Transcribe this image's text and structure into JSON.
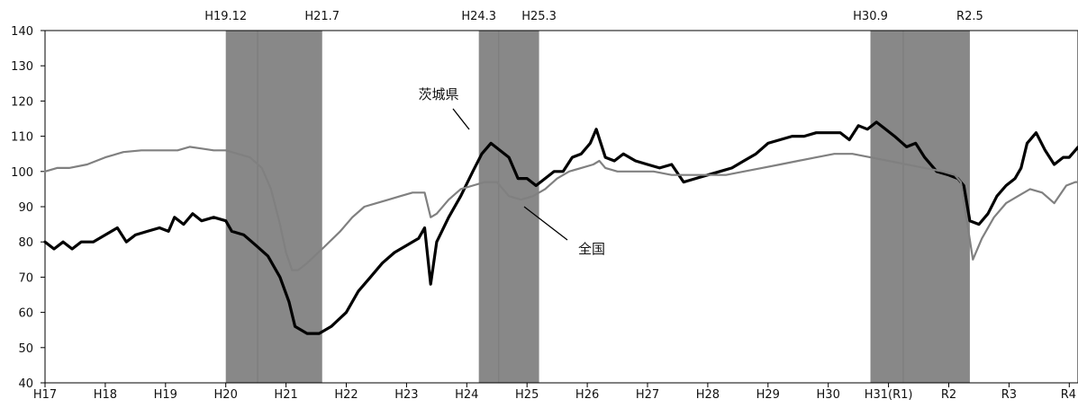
{
  "chart_data": {
    "type": "line",
    "x_unit": "fiscal year (Japanese era)",
    "xlim": [
      "H17",
      "R4+"
    ],
    "ylim": [
      40,
      140
    ],
    "y_ticks": [
      40,
      50,
      60,
      70,
      80,
      90,
      100,
      110,
      120,
      130,
      140
    ],
    "x_tick_labels": [
      "H17",
      "H18",
      "H19",
      "H20",
      "H21",
      "H22",
      "H23",
      "H24",
      "H25",
      "H26",
      "H27",
      "H28",
      "H29",
      "H30",
      "H31(R1)",
      "R2",
      "R3",
      "R4"
    ],
    "grid": false,
    "recession_bands": [
      {
        "start": 3.0,
        "end": 4.6,
        "peak_label": "H19.12",
        "trough_label": "H21.7"
      },
      {
        "start": 7.2,
        "end": 8.2,
        "peak_label": "H24.3",
        "trough_label": "H25.3"
      },
      {
        "start": 13.7,
        "end": 15.35,
        "peak_label": "H30.9",
        "trough_label": "R2.5"
      }
    ],
    "annotations": [
      {
        "text": "茨城県",
        "target_series": "茨城県"
      },
      {
        "text": "全国",
        "target_series": "全国"
      }
    ],
    "series": [
      {
        "name": "茨城県",
        "color": "#000000",
        "points": [
          [
            0.0,
            80
          ],
          [
            0.15,
            78
          ],
          [
            0.3,
            80
          ],
          [
            0.45,
            78
          ],
          [
            0.6,
            80
          ],
          [
            0.8,
            80
          ],
          [
            1.0,
            82
          ],
          [
            1.2,
            84
          ],
          [
            1.35,
            80
          ],
          [
            1.5,
            82
          ],
          [
            1.7,
            83
          ],
          [
            1.9,
            84
          ],
          [
            2.05,
            83
          ],
          [
            2.15,
            87
          ],
          [
            2.3,
            85
          ],
          [
            2.45,
            88
          ],
          [
            2.6,
            86
          ],
          [
            2.8,
            87
          ],
          [
            3.0,
            86
          ],
          [
            3.1,
            83
          ],
          [
            3.3,
            82
          ],
          [
            3.5,
            79
          ],
          [
            3.7,
            76
          ],
          [
            3.9,
            70
          ],
          [
            4.05,
            63
          ],
          [
            4.15,
            56
          ],
          [
            4.35,
            54
          ],
          [
            4.55,
            54
          ],
          [
            4.75,
            56
          ],
          [
            5.0,
            60
          ],
          [
            5.2,
            66
          ],
          [
            5.4,
            70
          ],
          [
            5.6,
            74
          ],
          [
            5.8,
            77
          ],
          [
            6.0,
            79
          ],
          [
            6.2,
            81
          ],
          [
            6.3,
            84
          ],
          [
            6.4,
            68
          ],
          [
            6.5,
            80
          ],
          [
            6.7,
            87
          ],
          [
            6.9,
            93
          ],
          [
            7.1,
            100
          ],
          [
            7.25,
            105
          ],
          [
            7.4,
            108
          ],
          [
            7.55,
            106
          ],
          [
            7.7,
            104
          ],
          [
            7.85,
            98
          ],
          [
            8.0,
            98
          ],
          [
            8.15,
            96
          ],
          [
            8.3,
            98
          ],
          [
            8.45,
            100
          ],
          [
            8.6,
            100
          ],
          [
            8.75,
            104
          ],
          [
            8.9,
            105
          ],
          [
            9.05,
            108
          ],
          [
            9.15,
            112
          ],
          [
            9.3,
            104
          ],
          [
            9.45,
            103
          ],
          [
            9.6,
            105
          ],
          [
            9.8,
            103
          ],
          [
            10.0,
            102
          ],
          [
            10.2,
            101
          ],
          [
            10.4,
            102
          ],
          [
            10.6,
            97
          ],
          [
            10.8,
            98
          ],
          [
            11.0,
            99
          ],
          [
            11.2,
            100
          ],
          [
            11.4,
            101
          ],
          [
            11.6,
            103
          ],
          [
            11.8,
            105
          ],
          [
            12.0,
            108
          ],
          [
            12.2,
            109
          ],
          [
            12.4,
            110
          ],
          [
            12.6,
            110
          ],
          [
            12.8,
            111
          ],
          [
            13.0,
            111
          ],
          [
            13.2,
            111
          ],
          [
            13.35,
            109
          ],
          [
            13.5,
            113
          ],
          [
            13.65,
            112
          ],
          [
            13.8,
            114
          ],
          [
            13.95,
            112
          ],
          [
            14.1,
            110
          ],
          [
            14.3,
            107
          ],
          [
            14.45,
            108
          ],
          [
            14.6,
            104
          ],
          [
            14.8,
            100
          ],
          [
            15.0,
            99
          ],
          [
            15.15,
            98
          ],
          [
            15.25,
            96
          ],
          [
            15.35,
            86
          ],
          [
            15.5,
            85
          ],
          [
            15.65,
            88
          ],
          [
            15.8,
            93
          ],
          [
            15.95,
            96
          ],
          [
            16.1,
            98
          ],
          [
            16.2,
            101
          ],
          [
            16.3,
            108
          ],
          [
            16.45,
            111
          ],
          [
            16.6,
            106
          ],
          [
            16.75,
            102
          ],
          [
            16.9,
            104
          ],
          [
            17.0,
            104
          ],
          [
            17.15,
            107
          ],
          [
            17.3,
            105
          ],
          [
            17.5,
            106
          ]
        ]
      },
      {
        "name": "全国",
        "color": "#808080",
        "points": [
          [
            0.0,
            100
          ],
          [
            0.2,
            101
          ],
          [
            0.4,
            101
          ],
          [
            0.7,
            102
          ],
          [
            1.0,
            104
          ],
          [
            1.3,
            105.5
          ],
          [
            1.6,
            106
          ],
          [
            2.0,
            106
          ],
          [
            2.2,
            106
          ],
          [
            2.4,
            107
          ],
          [
            2.6,
            106.5
          ],
          [
            2.8,
            106
          ],
          [
            3.0,
            106
          ],
          [
            3.2,
            105
          ],
          [
            3.4,
            104
          ],
          [
            3.6,
            101
          ],
          [
            3.75,
            95
          ],
          [
            3.9,
            85
          ],
          [
            4.0,
            77
          ],
          [
            4.1,
            72
          ],
          [
            4.2,
            72
          ],
          [
            4.35,
            74
          ],
          [
            4.6,
            78
          ],
          [
            4.9,
            83
          ],
          [
            5.1,
            87
          ],
          [
            5.3,
            90
          ],
          [
            5.5,
            91
          ],
          [
            5.7,
            92
          ],
          [
            5.9,
            93
          ],
          [
            6.1,
            94
          ],
          [
            6.3,
            94
          ],
          [
            6.4,
            87
          ],
          [
            6.5,
            88
          ],
          [
            6.7,
            92
          ],
          [
            6.9,
            95
          ],
          [
            7.1,
            96
          ],
          [
            7.3,
            97
          ],
          [
            7.5,
            97
          ],
          [
            7.7,
            93
          ],
          [
            7.9,
            92
          ],
          [
            8.1,
            93
          ],
          [
            8.3,
            95
          ],
          [
            8.5,
            98
          ],
          [
            8.7,
            100
          ],
          [
            8.9,
            101
          ],
          [
            9.1,
            102
          ],
          [
            9.2,
            103
          ],
          [
            9.3,
            101
          ],
          [
            9.5,
            100
          ],
          [
            9.8,
            100
          ],
          [
            10.1,
            100
          ],
          [
            10.4,
            99
          ],
          [
            10.7,
            99
          ],
          [
            11.0,
            99
          ],
          [
            11.3,
            99
          ],
          [
            11.6,
            100
          ],
          [
            11.9,
            101
          ],
          [
            12.2,
            102
          ],
          [
            12.5,
            103
          ],
          [
            12.8,
            104
          ],
          [
            13.1,
            105
          ],
          [
            13.4,
            105
          ],
          [
            13.7,
            104
          ],
          [
            14.0,
            103
          ],
          [
            14.3,
            102
          ],
          [
            14.6,
            101
          ],
          [
            14.9,
            100
          ],
          [
            15.1,
            99
          ],
          [
            15.2,
            97
          ],
          [
            15.3,
            86
          ],
          [
            15.4,
            75
          ],
          [
            15.55,
            81
          ],
          [
            15.75,
            87
          ],
          [
            15.95,
            91
          ],
          [
            16.15,
            93
          ],
          [
            16.35,
            95
          ],
          [
            16.55,
            94
          ],
          [
            16.75,
            91
          ],
          [
            16.95,
            96
          ],
          [
            17.1,
            97
          ],
          [
            17.3,
            97
          ],
          [
            17.5,
            97
          ]
        ]
      }
    ]
  }
}
